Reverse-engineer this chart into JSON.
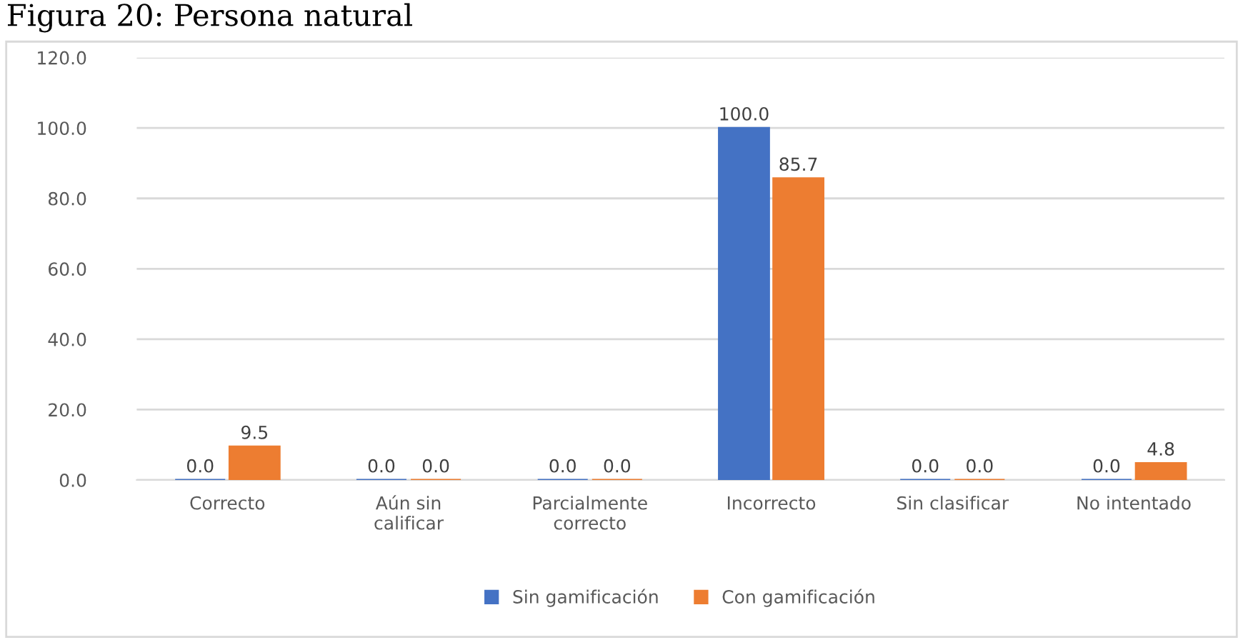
{
  "chart_data": {
    "type": "bar",
    "title": "Figura 20: Persona natural",
    "categories": [
      "Correcto",
      "Aún sin\ncalificar",
      "Parcialmente\ncorrecto",
      "Incorrecto",
      "Sin clasificar",
      "No intentado"
    ],
    "series": [
      {
        "name": "Sin gamificación",
        "color": "#4472c4",
        "values": [
          0.0,
          0.0,
          0.0,
          100.0,
          0.0,
          0.0
        ],
        "value_labels": [
          "0.0",
          "0.0",
          "0.0",
          "100.0",
          "0.0",
          "0.0"
        ]
      },
      {
        "name": "Con gamificación",
        "color": "#ed7d31",
        "values": [
          9.5,
          0.0,
          0.0,
          85.7,
          0.0,
          4.8
        ],
        "value_labels": [
          "9.5",
          "0.0",
          "0.0",
          "85.7",
          "0.0",
          "4.8"
        ]
      }
    ],
    "ylim": [
      0,
      120
    ],
    "yticks": [
      {
        "value": 0,
        "label": "0.0"
      },
      {
        "value": 20,
        "label": "20.0"
      },
      {
        "value": 40,
        "label": "40.0"
      },
      {
        "value": 60,
        "label": "60.0"
      },
      {
        "value": 80,
        "label": "80.0"
      },
      {
        "value": 100,
        "label": "100.0"
      },
      {
        "value": 120,
        "label": "120.0"
      }
    ],
    "grid": "y",
    "legend": "bottom"
  }
}
